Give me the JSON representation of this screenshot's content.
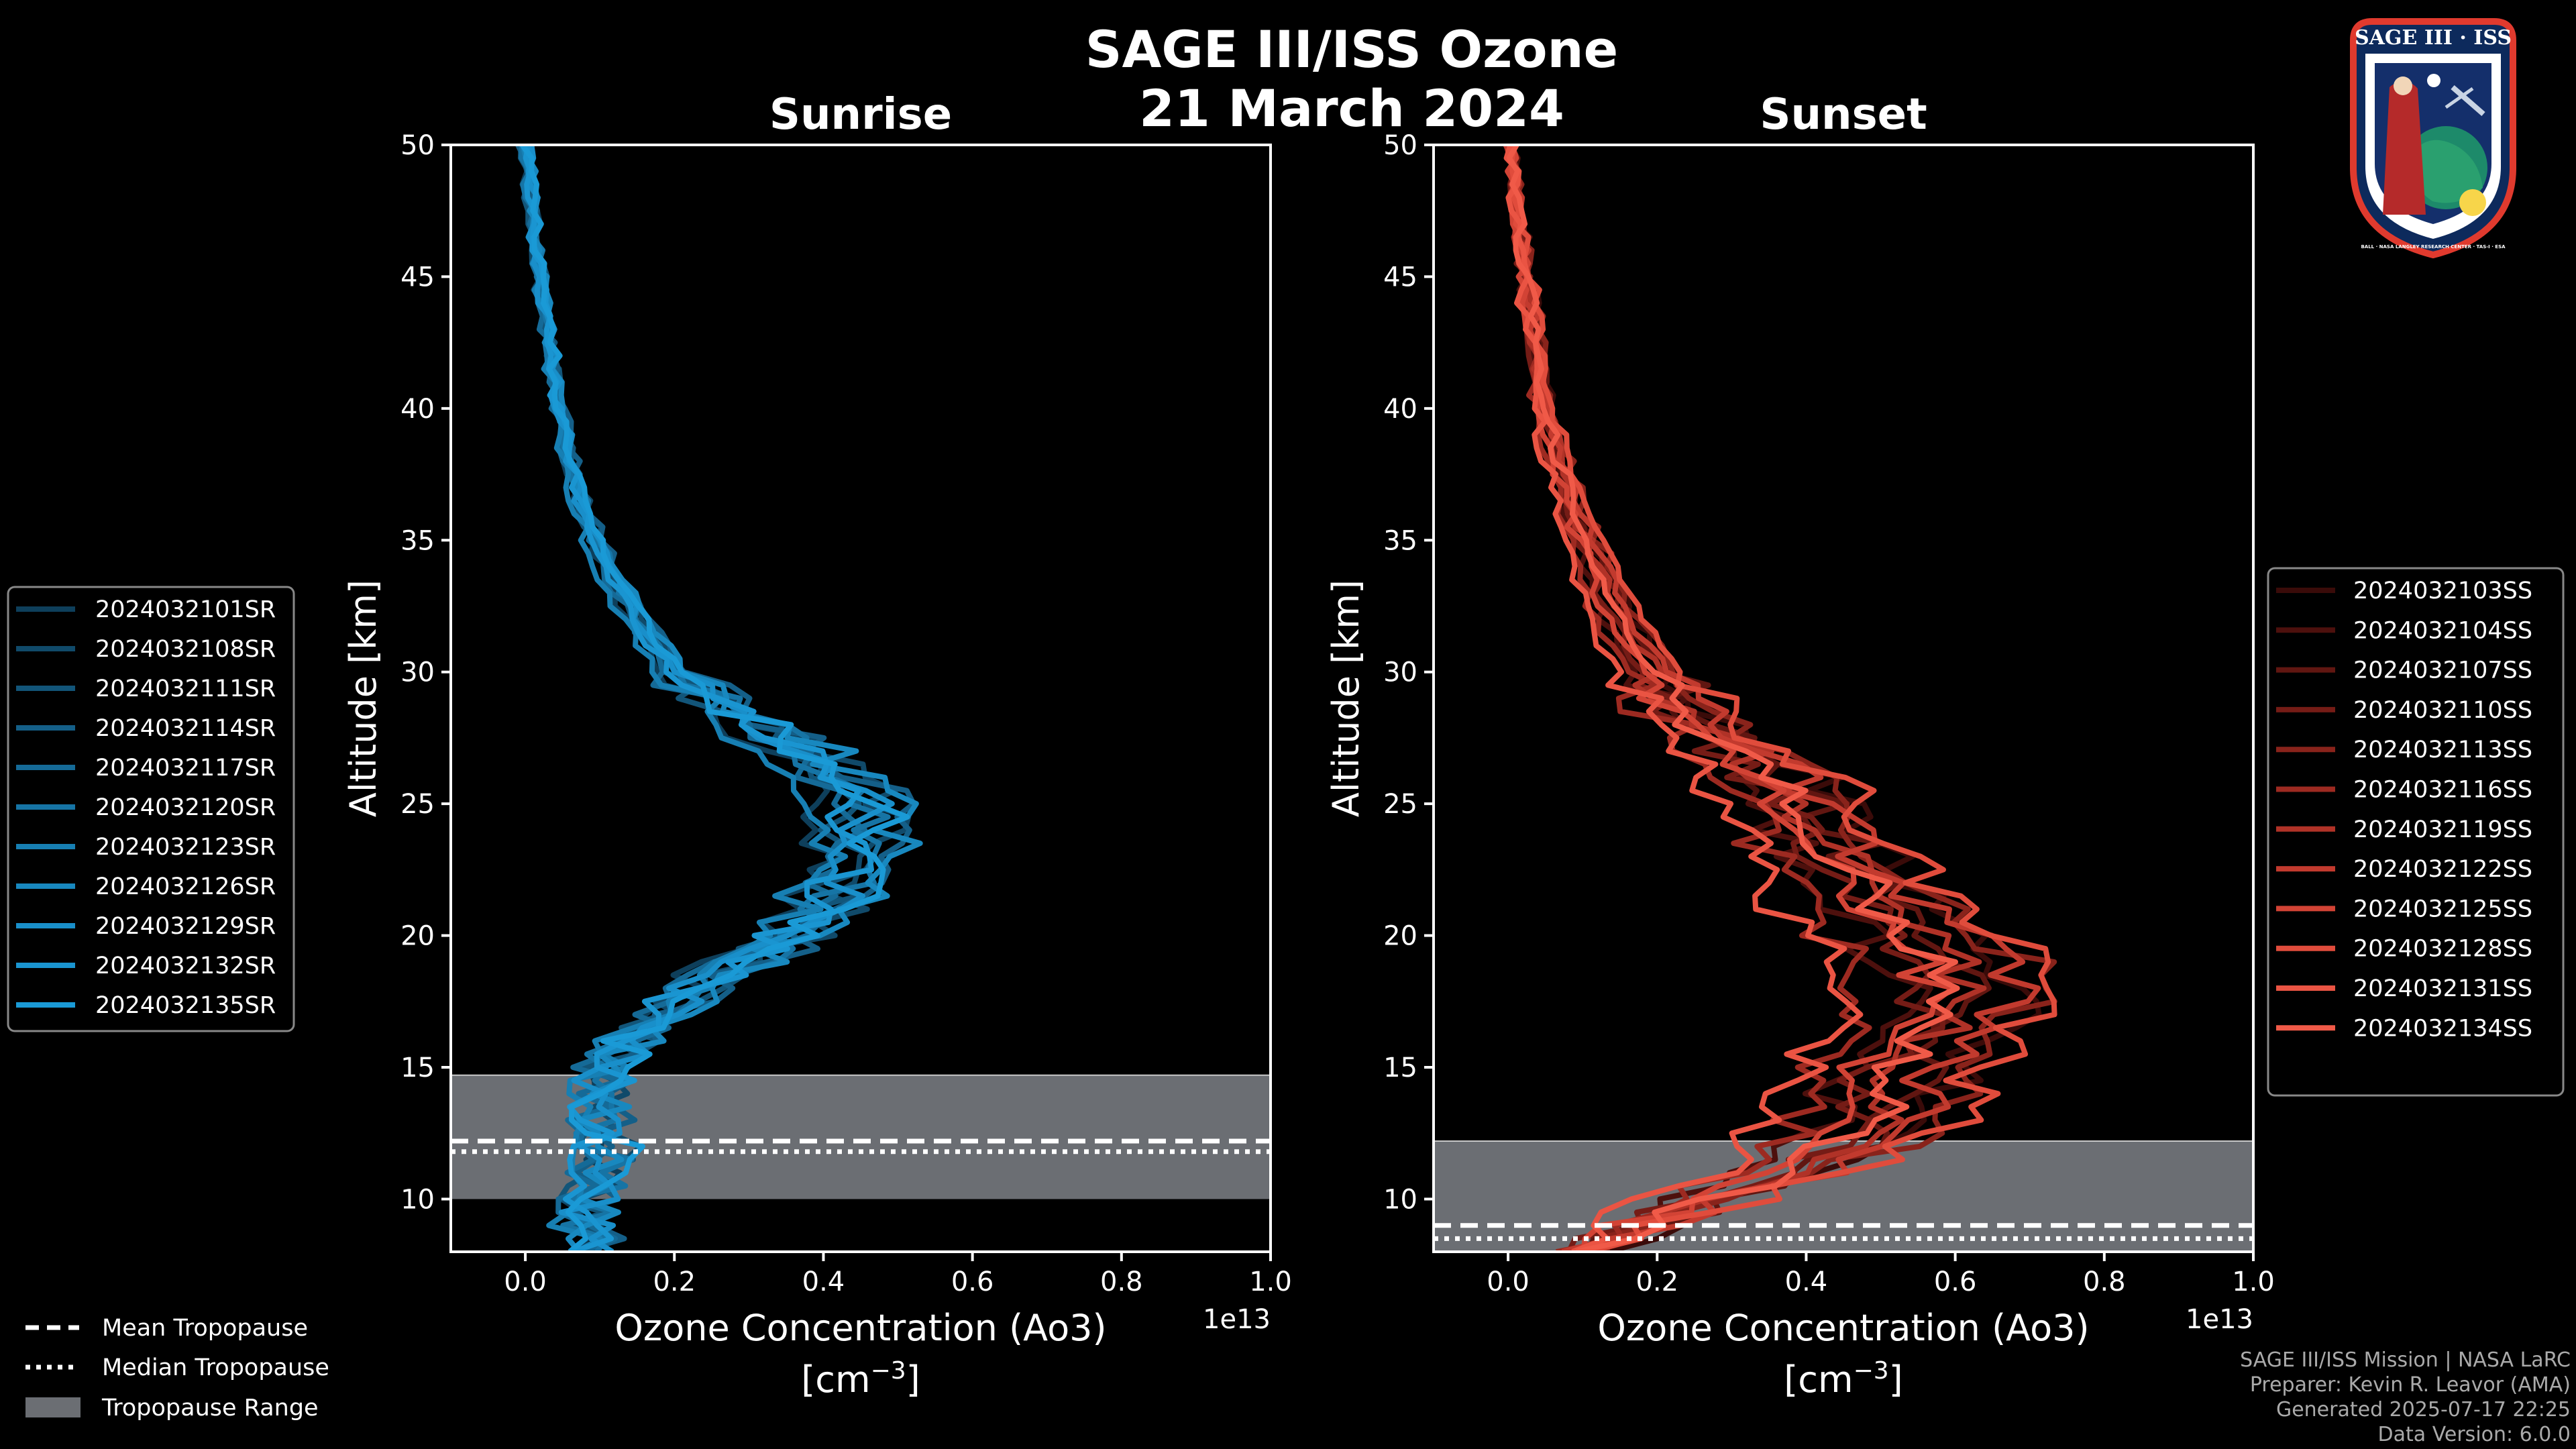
{
  "figure": {
    "title_line1": "SAGE III/ISS Ozone",
    "title_line2": "21 March 2024"
  },
  "footer": {
    "line1": "SAGE III/ISS Mission | NASA LaRC",
    "line2": "Preparer: Kevin R. Leavor (AMA)",
    "line3": "Generated 2025-07-17 22:25",
    "line4": "Data Version: 6.0.0"
  },
  "logo": {
    "top_text": "SAGE III · ISS",
    "ring_text": "BALL · NASA LANGLEY RESEARCH CENTER · TAS-I · ESA"
  },
  "tropopause_legend": {
    "mean": "Mean Tropopause",
    "median": "Median Tropopause",
    "range": "Tropopause Range"
  },
  "colors": {
    "sunrise": "#1a9ad6",
    "sunset": "#f05a48",
    "trop_band": "#6b6e73"
  },
  "chart_data": [
    {
      "type": "line",
      "title": "Sunrise",
      "xlabel": "Ozone Concentration (Ao3)",
      "xlabel_units": "[cm",
      "xlabel_exp": "−3",
      "xlabel_close": "]",
      "ylabel": "Altitude [km]",
      "x_scale_label": "1e13",
      "xlim": [
        -0.1,
        1.0
      ],
      "ylim": [
        8,
        50
      ],
      "x_ticks": [
        "0.0",
        "0.2",
        "0.4",
        "0.6",
        "0.8",
        "1.0"
      ],
      "x_tick_values": [
        0.0,
        0.2,
        0.4,
        0.6,
        0.8,
        1.0
      ],
      "y_ticks": [
        "10",
        "15",
        "20",
        "25",
        "30",
        "35",
        "40",
        "45",
        "50"
      ],
      "y_tick_values": [
        10,
        15,
        20,
        25,
        30,
        35,
        40,
        45,
        50
      ],
      "tropopause": {
        "mean": 12.2,
        "median": 11.8,
        "range": [
          10.0,
          14.7
        ]
      },
      "base_profile": {
        "altitude": [
          8,
          9,
          10,
          11,
          12,
          13,
          14,
          15,
          16,
          17,
          18,
          19,
          20,
          21,
          22,
          23,
          24,
          25,
          26,
          27,
          28,
          29,
          30,
          32,
          34,
          36,
          38,
          40,
          42,
          44,
          46,
          48,
          50
        ],
        "ozone": [
          0.08,
          0.08,
          0.09,
          0.1,
          0.11,
          0.1,
          0.1,
          0.11,
          0.14,
          0.18,
          0.23,
          0.29,
          0.35,
          0.4,
          0.43,
          0.45,
          0.45,
          0.45,
          0.42,
          0.37,
          0.31,
          0.25,
          0.2,
          0.15,
          0.11,
          0.08,
          0.06,
          0.045,
          0.035,
          0.025,
          0.015,
          0.008,
          0.0
        ]
      },
      "series": [
        {
          "name": "2024032101SR",
          "color": "#0e3f5b",
          "scale": 0.92,
          "jitter": 1
        },
        {
          "name": "2024032108SR",
          "color": "#104a6a",
          "scale": 1.06,
          "jitter": 2
        },
        {
          "name": "2024032111SR",
          "color": "#125579",
          "scale": 0.98,
          "jitter": 3
        },
        {
          "name": "2024032114SR",
          "color": "#145f88",
          "scale": 1.1,
          "jitter": 4
        },
        {
          "name": "2024032117SR",
          "color": "#156a97",
          "scale": 0.95,
          "jitter": 5
        },
        {
          "name": "2024032120SR",
          "color": "#1674a5",
          "scale": 1.02,
          "jitter": 6
        },
        {
          "name": "2024032123SR",
          "color": "#177fb3",
          "scale": 0.88,
          "jitter": 7
        },
        {
          "name": "2024032126SR",
          "color": "#1888bf",
          "scale": 1.08,
          "jitter": 8
        },
        {
          "name": "2024032129SR",
          "color": "#198fca",
          "scale": 1.0,
          "jitter": 9
        },
        {
          "name": "2024032132SR",
          "color": "#1a95d1",
          "scale": 0.97,
          "jitter": 10
        },
        {
          "name": "2024032135SR",
          "color": "#1a9ad6",
          "scale": 1.04,
          "jitter": 11
        }
      ]
    },
    {
      "type": "line",
      "title": "Sunset",
      "xlabel": "Ozone Concentration (Ao3)",
      "xlabel_units": "[cm",
      "xlabel_exp": "−3",
      "xlabel_close": "]",
      "ylabel": "Altitude [km]",
      "x_scale_label": "1e13",
      "xlim": [
        -0.1,
        1.0
      ],
      "ylim": [
        8,
        50
      ],
      "x_ticks": [
        "0.0",
        "0.2",
        "0.4",
        "0.6",
        "0.8",
        "1.0"
      ],
      "x_tick_values": [
        0.0,
        0.2,
        0.4,
        0.6,
        0.8,
        1.0
      ],
      "y_ticks": [
        "10",
        "15",
        "20",
        "25",
        "30",
        "35",
        "40",
        "45",
        "50"
      ],
      "y_tick_values": [
        10,
        15,
        20,
        25,
        30,
        35,
        40,
        45,
        50
      ],
      "tropopause": {
        "mean": 9.0,
        "median": 8.5,
        "range": [
          8.0,
          12.2
        ]
      },
      "base_profile": {
        "altitude": [
          8,
          9,
          10,
          11,
          12,
          13,
          14,
          15,
          16,
          17,
          18,
          19,
          20,
          21,
          22,
          23,
          24,
          25,
          26,
          27,
          28,
          29,
          30,
          32,
          34,
          36,
          38,
          40,
          42,
          44,
          46,
          48,
          50
        ],
        "ozone": [
          0.1,
          0.18,
          0.28,
          0.38,
          0.45,
          0.5,
          0.52,
          0.54,
          0.57,
          0.6,
          0.62,
          0.6,
          0.56,
          0.52,
          0.48,
          0.45,
          0.42,
          0.4,
          0.36,
          0.31,
          0.27,
          0.23,
          0.2,
          0.15,
          0.12,
          0.09,
          0.07,
          0.05,
          0.04,
          0.03,
          0.02,
          0.01,
          0.005
        ]
      },
      "series": [
        {
          "name": "2024032103SS",
          "color": "#3a0b09",
          "scale": 1.12,
          "jitter": 1
        },
        {
          "name": "2024032104SS",
          "color": "#4d100d",
          "scale": 0.85,
          "jitter": 2
        },
        {
          "name": "2024032107SS",
          "color": "#611611",
          "scale": 1.05,
          "jitter": 3
        },
        {
          "name": "2024032110SS",
          "color": "#751c16",
          "scale": 0.92,
          "jitter": 4
        },
        {
          "name": "2024032113SS",
          "color": "#89231b",
          "scale": 1.15,
          "jitter": 5
        },
        {
          "name": "2024032116SS",
          "color": "#9d2a21",
          "scale": 0.78,
          "jitter": 6
        },
        {
          "name": "2024032119SS",
          "color": "#b03227",
          "scale": 1.0,
          "jitter": 7
        },
        {
          "name": "2024032122SS",
          "color": "#c23a2e",
          "scale": 1.08,
          "jitter": 8
        },
        {
          "name": "2024032125SS",
          "color": "#d24335",
          "scale": 0.9,
          "jitter": 9
        },
        {
          "name": "2024032128SS",
          "color": "#e04c3c",
          "scale": 1.18,
          "jitter": 10
        },
        {
          "name": "2024032131SS",
          "color": "#ea5443",
          "scale": 0.72,
          "jitter": 11
        },
        {
          "name": "2024032134SS",
          "color": "#f05a48",
          "scale": 0.98,
          "jitter": 12
        }
      ]
    }
  ]
}
